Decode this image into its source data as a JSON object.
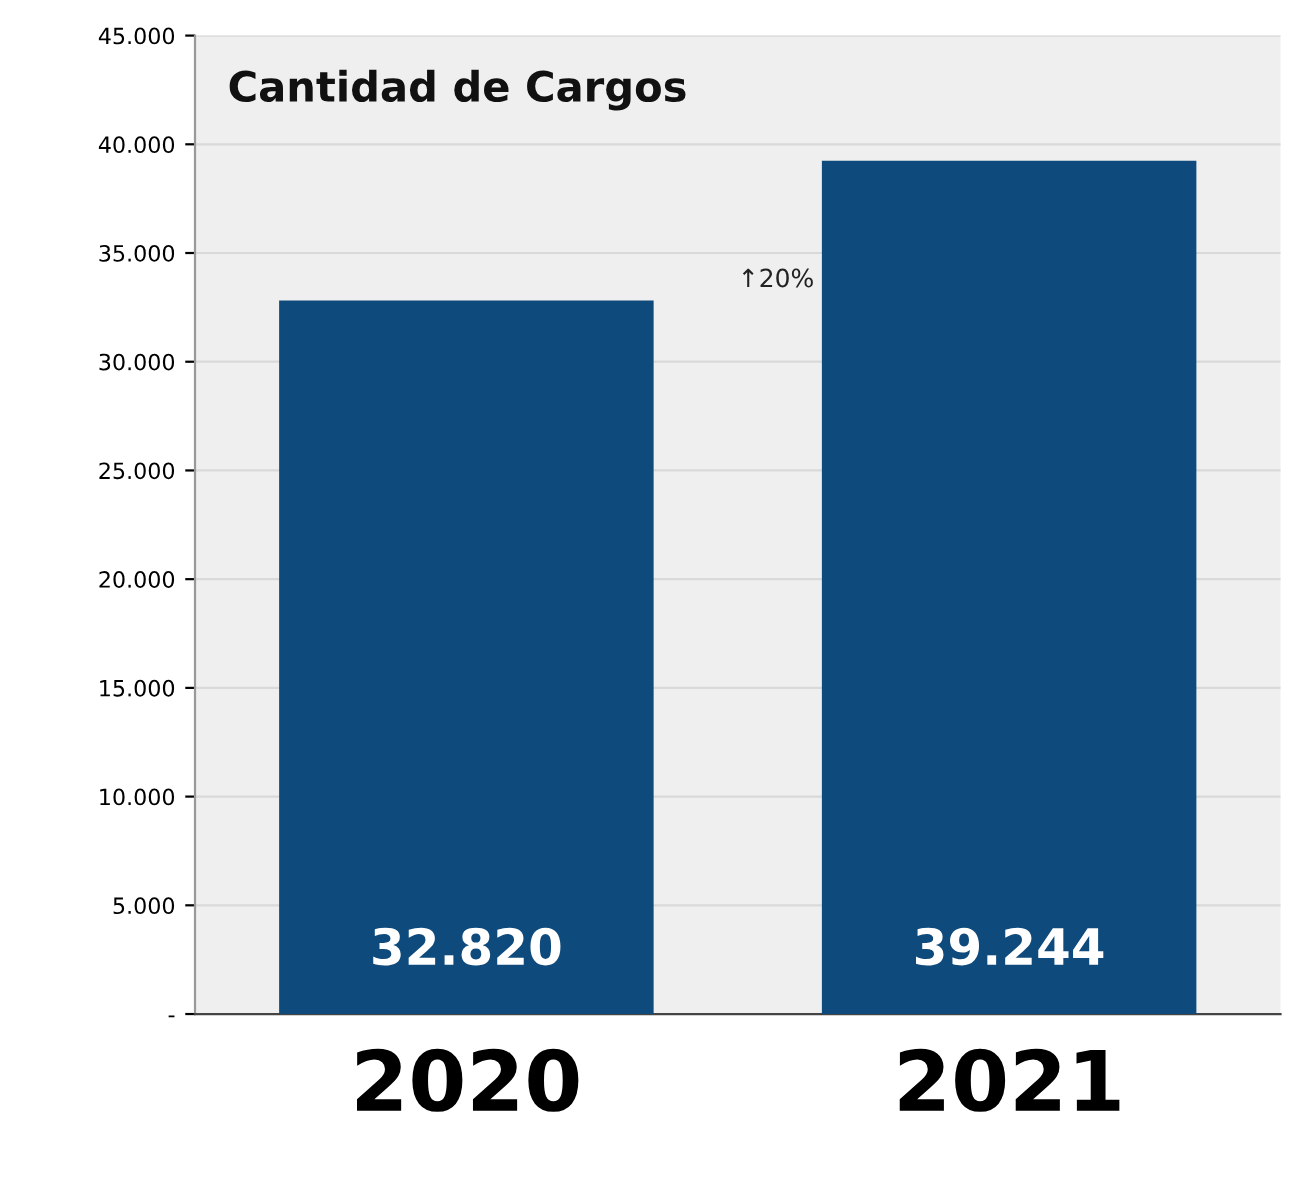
{
  "chart_data": {
    "type": "bar",
    "title": "Cantidad de Cargos",
    "categories": [
      "2020",
      "2021"
    ],
    "values": [
      32820,
      39244
    ],
    "value_labels": [
      "32.820",
      "39.244"
    ],
    "color": "#0e4a7b",
    "ylim": [
      0,
      45000
    ],
    "yticks": [
      {
        "value": 0,
        "label": "-"
      },
      {
        "value": 5000,
        "label": "5.000"
      },
      {
        "value": 10000,
        "label": "10.000"
      },
      {
        "value": 15000,
        "label": "15.000"
      },
      {
        "value": 20000,
        "label": "20.000"
      },
      {
        "value": 25000,
        "label": "25.000"
      },
      {
        "value": 30000,
        "label": "30.000"
      },
      {
        "value": 35000,
        "label": "35.000"
      },
      {
        "value": 40000,
        "label": "40.000"
      },
      {
        "value": 45000,
        "label": "45.000"
      }
    ],
    "grid": "y",
    "annotations": [
      "↑20%"
    ]
  }
}
